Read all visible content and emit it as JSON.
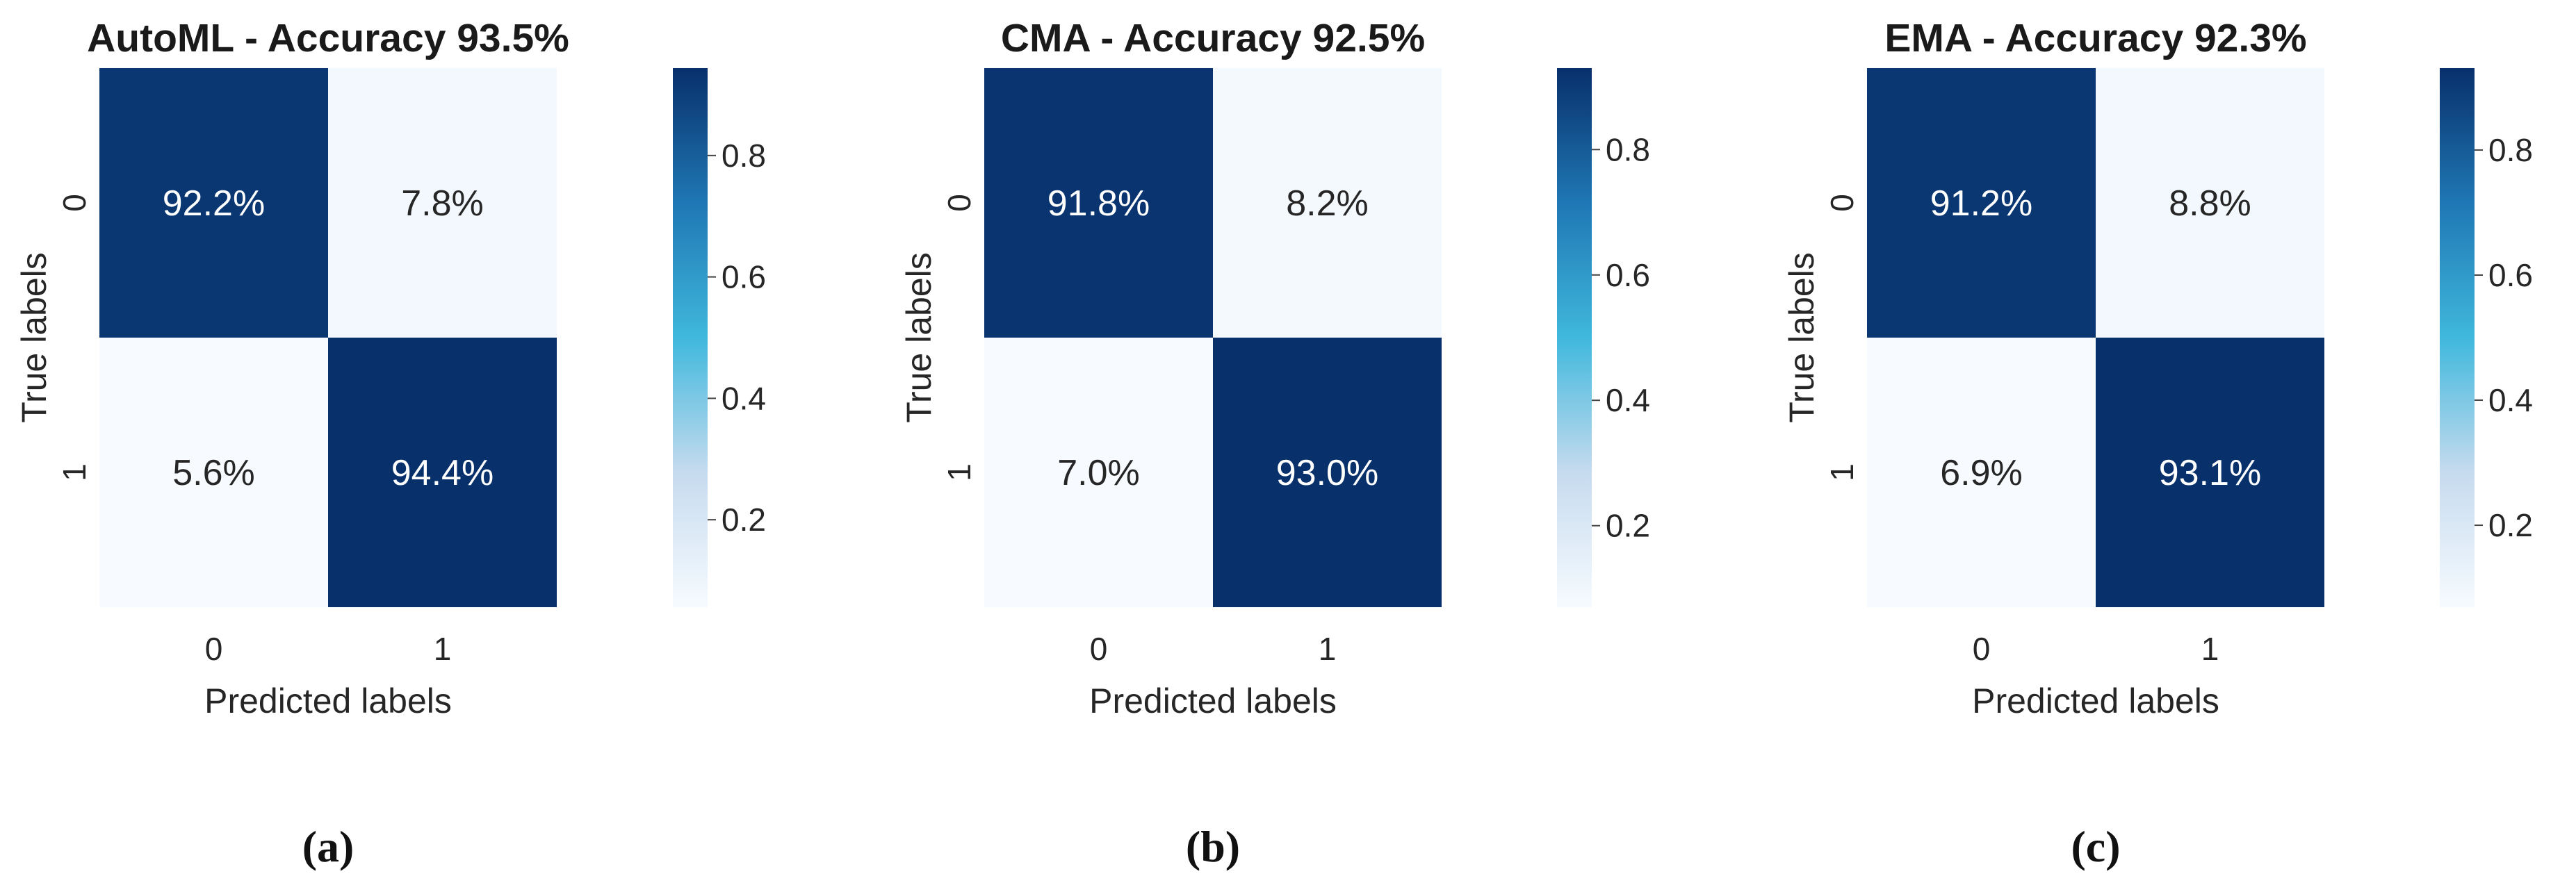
{
  "colors": {
    "low": "#f7fbff",
    "mid_light": "#c6dbef",
    "mid": "#3fb8dc",
    "mid_dark": "#1f77b4",
    "high": "#08306b",
    "text_on_dark": "#ffffff",
    "text_on_light": "#262626"
  },
  "chart_data": [
    {
      "type": "heatmap",
      "title": "AutoML - Accuracy 93.5%",
      "caption": "(a)",
      "xlabel": "Predicted labels",
      "ylabel": "True labels",
      "x_categories": [
        "0",
        "1"
      ],
      "y_categories": [
        "0",
        "1"
      ],
      "values": [
        [
          0.922,
          0.078
        ],
        [
          0.056,
          0.944
        ]
      ],
      "cell_labels": [
        [
          "92.2%",
          "7.8%"
        ],
        [
          "5.6%",
          "94.4%"
        ]
      ],
      "colorbar": {
        "range": [
          0.056,
          0.944
        ],
        "ticks": [
          0.2,
          0.4,
          0.6,
          0.8
        ],
        "tick_labels": [
          "0.2",
          "0.4",
          "0.6",
          "0.8"
        ]
      }
    },
    {
      "type": "heatmap",
      "title": "CMA - Accuracy 92.5%",
      "caption": "(b)",
      "xlabel": "Predicted labels",
      "ylabel": "True labels",
      "x_categories": [
        "0",
        "1"
      ],
      "y_categories": [
        "0",
        "1"
      ],
      "values": [
        [
          0.918,
          0.082
        ],
        [
          0.07,
          0.93
        ]
      ],
      "cell_labels": [
        [
          "91.8%",
          "8.2%"
        ],
        [
          "7.0%",
          "93.0%"
        ]
      ],
      "colorbar": {
        "range": [
          0.07,
          0.93
        ],
        "ticks": [
          0.2,
          0.4,
          0.6,
          0.8
        ],
        "tick_labels": [
          "0.2",
          "0.4",
          "0.6",
          "0.8"
        ]
      }
    },
    {
      "type": "heatmap",
      "title": "EMA - Accuracy 92.3%",
      "caption": "(c)",
      "xlabel": "Predicted labels",
      "ylabel": "True labels",
      "x_categories": [
        "0",
        "1"
      ],
      "y_categories": [
        "0",
        "1"
      ],
      "values": [
        [
          0.912,
          0.088
        ],
        [
          0.069,
          0.931
        ]
      ],
      "cell_labels": [
        [
          "91.2%",
          "8.8%"
        ],
        [
          "6.9%",
          "93.1%"
        ]
      ],
      "colorbar": {
        "range": [
          0.069,
          0.931
        ],
        "ticks": [
          0.2,
          0.4,
          0.6,
          0.8
        ],
        "tick_labels": [
          "0.2",
          "0.4",
          "0.6",
          "0.8"
        ]
      }
    }
  ]
}
